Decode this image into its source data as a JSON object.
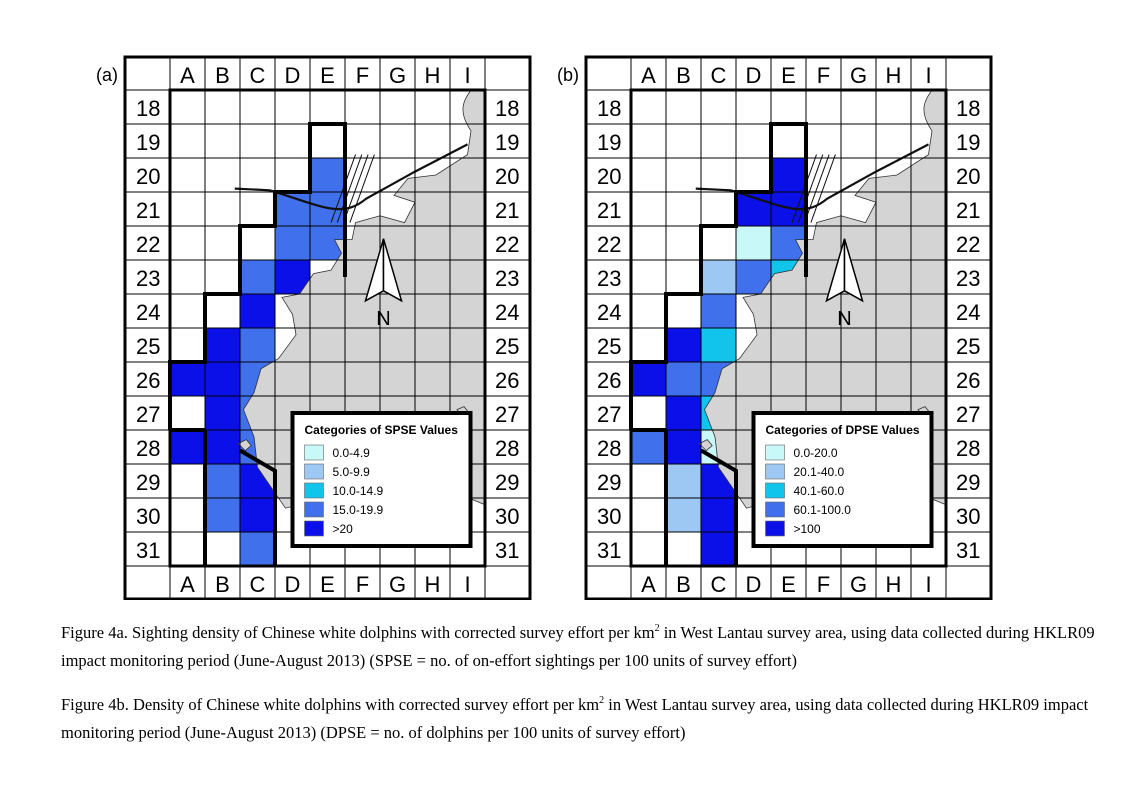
{
  "columns": [
    "A",
    "B",
    "C",
    "D",
    "E",
    "F",
    "G",
    "H",
    "I"
  ],
  "rows": [
    "18",
    "19",
    "20",
    "21",
    "22",
    "23",
    "24",
    "25",
    "26",
    "27",
    "28",
    "29",
    "30",
    "31"
  ],
  "north_label": "N",
  "colors": {
    "land": "#d4d4d4",
    "cat1": "#c8f8f8",
    "cat2": "#9ec8f4",
    "cat3": "#10c4ec",
    "cat4": "#4070ec",
    "cat5": "#0c10e8"
  },
  "panels": [
    {
      "label": "(a)",
      "legend": {
        "title": "Categories of SPSE Values",
        "items": [
          {
            "label": "0.0-4.9",
            "color": "#c8f8f8"
          },
          {
            "label": "5.0-9.9",
            "color": "#9ec8f4"
          },
          {
            "label": "10.0-14.9",
            "color": "#10c4ec"
          },
          {
            "label": "15.0-19.9",
            "color": "#4070ec"
          },
          {
            "label": ">20",
            "color": "#0c10e8"
          }
        ]
      },
      "cells": [
        {
          "col": "E",
          "row": "20",
          "category": 4
        },
        {
          "col": "D",
          "row": "21",
          "category": 4
        },
        {
          "col": "E",
          "row": "21",
          "category": 4
        },
        {
          "col": "D",
          "row": "22",
          "category": 4
        },
        {
          "col": "E",
          "row": "22",
          "category": 4
        },
        {
          "col": "C",
          "row": "23",
          "category": 4
        },
        {
          "col": "D",
          "row": "23",
          "category": 5
        },
        {
          "col": "C",
          "row": "24",
          "category": 5
        },
        {
          "col": "B",
          "row": "25",
          "category": 5
        },
        {
          "col": "C",
          "row": "25",
          "category": 4
        },
        {
          "col": "A",
          "row": "26",
          "category": 5
        },
        {
          "col": "B",
          "row": "26",
          "category": 5
        },
        {
          "col": "C",
          "row": "26",
          "category": 4
        },
        {
          "col": "B",
          "row": "27",
          "category": 5
        },
        {
          "col": "C",
          "row": "27",
          "category": 4
        },
        {
          "col": "A",
          "row": "28",
          "category": 5
        },
        {
          "col": "B",
          "row": "28",
          "category": 5
        },
        {
          "col": "C",
          "row": "28",
          "category": 4
        },
        {
          "col": "B",
          "row": "29",
          "category": 4
        },
        {
          "col": "C",
          "row": "29",
          "category": 5
        },
        {
          "col": "B",
          "row": "30",
          "category": 4
        },
        {
          "col": "C",
          "row": "30",
          "category": 5
        },
        {
          "col": "C",
          "row": "31",
          "category": 4
        }
      ]
    },
    {
      "label": "(b)",
      "legend": {
        "title": "Categories of DPSE Values",
        "items": [
          {
            "label": "0.0-20.0",
            "color": "#c8f8f8"
          },
          {
            "label": "20.1-40.0",
            "color": "#9ec8f4"
          },
          {
            "label": "40.1-60.0",
            "color": "#10c4ec"
          },
          {
            "label": "60.1-100.0",
            "color": "#4070ec"
          },
          {
            "label": ">100",
            "color": "#0c10e8"
          }
        ]
      },
      "cells": [
        {
          "col": "E",
          "row": "20",
          "category": 5
        },
        {
          "col": "D",
          "row": "21",
          "category": 5
        },
        {
          "col": "E",
          "row": "21",
          "category": 5
        },
        {
          "col": "D",
          "row": "22",
          "category": 1
        },
        {
          "col": "E",
          "row": "22",
          "category": 4
        },
        {
          "col": "C",
          "row": "23",
          "category": 2
        },
        {
          "col": "D",
          "row": "23",
          "category": 4
        },
        {
          "col": "E",
          "row": "23",
          "category": 3
        },
        {
          "col": "C",
          "row": "24",
          "category": 4
        },
        {
          "col": "B",
          "row": "25",
          "category": 5
        },
        {
          "col": "C",
          "row": "25",
          "category": 3
        },
        {
          "col": "A",
          "row": "26",
          "category": 5
        },
        {
          "col": "B",
          "row": "26",
          "category": 4
        },
        {
          "col": "C",
          "row": "26",
          "category": 4
        },
        {
          "col": "B",
          "row": "27",
          "category": 5
        },
        {
          "col": "C",
          "row": "27",
          "category": 3
        },
        {
          "col": "A",
          "row": "28",
          "category": 4
        },
        {
          "col": "B",
          "row": "28",
          "category": 5
        },
        {
          "col": "C",
          "row": "28",
          "category": 1
        },
        {
          "col": "B",
          "row": "29",
          "category": 2
        },
        {
          "col": "C",
          "row": "29",
          "category": 5
        },
        {
          "col": "B",
          "row": "30",
          "category": 2
        },
        {
          "col": "C",
          "row": "30",
          "category": 5
        },
        {
          "col": "C",
          "row": "31",
          "category": 5
        }
      ]
    }
  ],
  "captions": {
    "a": {
      "part1": "Figure 4a.  Sighting density of Chinese white dolphins with corrected survey effort per km",
      "sup": "2",
      "part2": " in West Lantau survey area, using data collected during HKLR09 impact monitoring period (June-August 2013) (SPSE = no. of on-effort sightings per 100 units of survey effort)"
    },
    "b": {
      "part1": "Figure 4b.  Density of Chinese white dolphins with corrected survey effort per km",
      "sup": "2",
      "part2": " in West Lantau survey area, using data collected during HKLR09 impact monitoring period (June-August 2013) (DPSE = no. of dolphins per 100 units of survey effort)"
    }
  }
}
